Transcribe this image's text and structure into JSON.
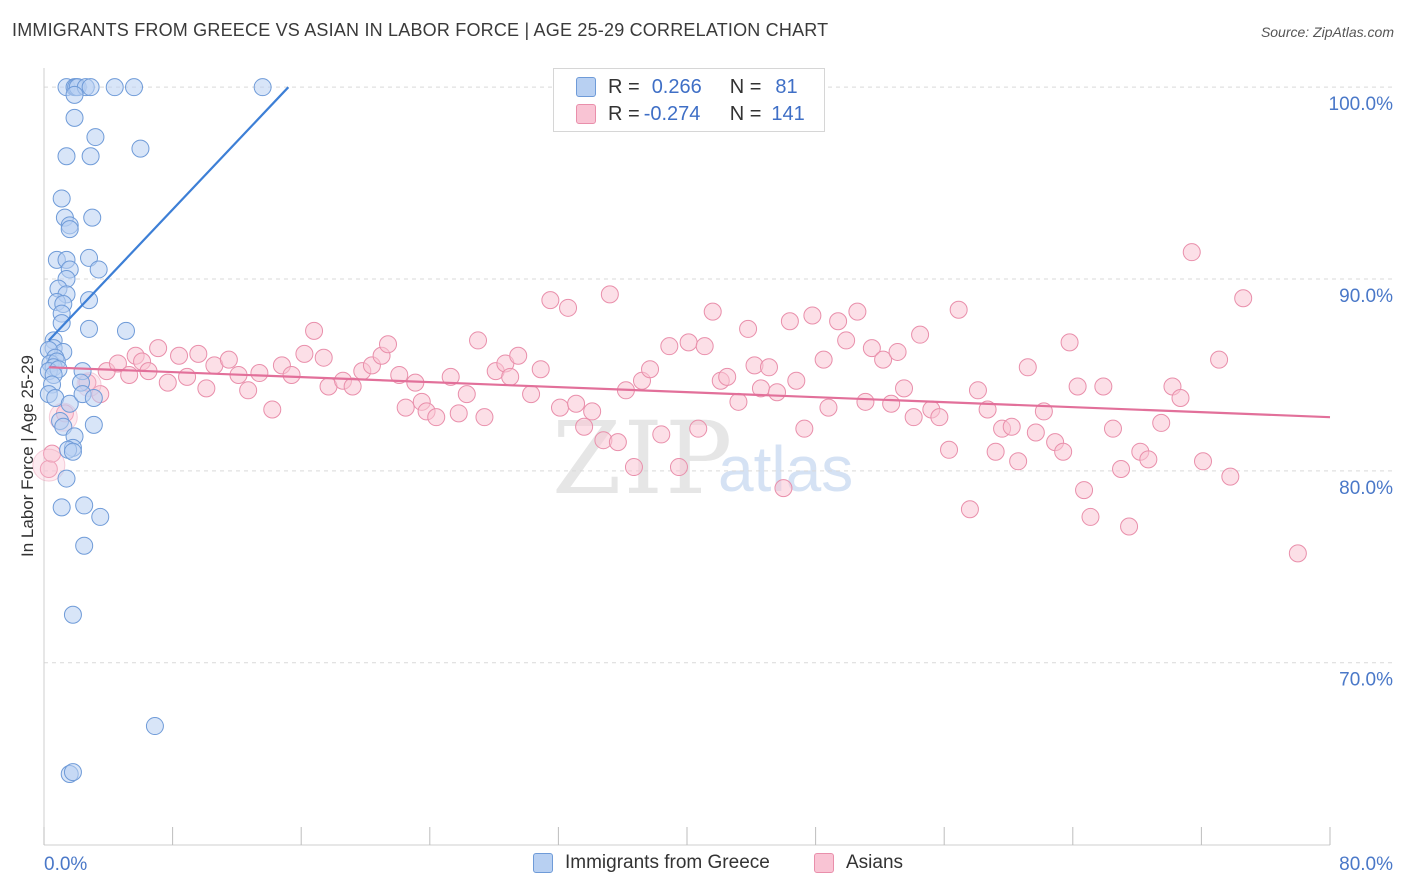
{
  "title": "IMMIGRANTS FROM GREECE VS ASIAN IN LABOR FORCE | AGE 25-29 CORRELATION CHART",
  "source": "Source: ZipAtlas.com",
  "watermark": {
    "zip": "ZIP",
    "atlas": "atlas"
  },
  "colors": {
    "blue_fill": "#b8d0f2",
    "blue_stroke": "#6f9bd8",
    "blue_line": "#3d7fd6",
    "pink_fill": "#f9c4d4",
    "pink_stroke": "#e98fab",
    "pink_line": "#e2709a",
    "axis_text": "#4a78c8",
    "grid": "#d9d9d9"
  },
  "legend": {
    "row1": {
      "r_label": "R =",
      "r_value": "0.266",
      "n_label": "N =",
      "n_value": "81"
    },
    "row2": {
      "r_label": "R =",
      "r_value": "-0.274",
      "n_label": "N =",
      "n_value": "141"
    }
  },
  "bottom_legend": {
    "series1": "Immigrants from Greece",
    "series2": "Asians"
  },
  "chart_data": {
    "type": "scatter",
    "title": "IMMIGRANTS FROM GREECE VS ASIAN IN LABOR FORCE | AGE 25-29 CORRELATION CHART",
    "xlabel": "",
    "ylabel": "In Labor Force | Age 25-29",
    "xlim": [
      0,
      80
    ],
    "ylim": [
      60.5,
      101
    ],
    "x_tick_labels": {
      "left": "0.0%",
      "right": "80.0%"
    },
    "y_ticks": [
      {
        "value": 100,
        "label": "100.0%"
      },
      {
        "value": 90,
        "label": "90.0%"
      },
      {
        "value": 80,
        "label": "80.0%"
      },
      {
        "value": 70,
        "label": "70.0%"
      }
    ],
    "series": [
      {
        "name": "Immigrants from Greece",
        "color": "blue",
        "trend": {
          "x1": 0.3,
          "y1": 86.8,
          "x2": 15.2,
          "y2": 100.0
        },
        "points": [
          [
            1.4,
            100
          ],
          [
            1.9,
            100
          ],
          [
            2.0,
            100
          ],
          [
            2.1,
            100
          ],
          [
            2.6,
            100
          ],
          [
            2.9,
            100
          ],
          [
            4.4,
            100
          ],
          [
            5.6,
            100
          ],
          [
            13.6,
            100
          ],
          [
            1.9,
            99.6
          ],
          [
            1.9,
            98.4
          ],
          [
            3.2,
            97.4
          ],
          [
            6.0,
            96.8
          ],
          [
            1.4,
            96.4
          ],
          [
            2.9,
            96.4
          ],
          [
            1.1,
            94.2
          ],
          [
            1.3,
            93.2
          ],
          [
            3.0,
            93.2
          ],
          [
            1.6,
            92.8
          ],
          [
            1.6,
            92.6
          ],
          [
            0.8,
            91.0
          ],
          [
            1.4,
            91.0
          ],
          [
            2.8,
            91.1
          ],
          [
            1.6,
            90.5
          ],
          [
            1.4,
            90.0
          ],
          [
            3.4,
            90.5
          ],
          [
            0.9,
            89.5
          ],
          [
            1.4,
            89.2
          ],
          [
            0.8,
            88.8
          ],
          [
            1.2,
            88.7
          ],
          [
            1.1,
            88.2
          ],
          [
            2.8,
            88.9
          ],
          [
            1.1,
            87.7
          ],
          [
            2.8,
            87.4
          ],
          [
            5.1,
            87.3
          ],
          [
            0.6,
            86.8
          ],
          [
            0.6,
            86.4
          ],
          [
            1.2,
            86.2
          ],
          [
            0.3,
            86.3
          ],
          [
            0.7,
            85.9
          ],
          [
            0.4,
            85.6
          ],
          [
            0.8,
            85.7
          ],
          [
            0.6,
            85.4
          ],
          [
            0.3,
            85.2
          ],
          [
            0.9,
            85.3
          ],
          [
            2.4,
            85.2
          ],
          [
            0.6,
            85.0
          ],
          [
            0.5,
            84.5
          ],
          [
            2.3,
            84.6
          ],
          [
            0.3,
            84.0
          ],
          [
            0.7,
            83.8
          ],
          [
            1.6,
            83.5
          ],
          [
            2.4,
            84.0
          ],
          [
            3.1,
            83.8
          ],
          [
            1.0,
            82.6
          ],
          [
            1.2,
            82.3
          ],
          [
            3.1,
            82.4
          ],
          [
            1.9,
            81.8
          ],
          [
            1.8,
            81.2
          ],
          [
            1.5,
            81.1
          ],
          [
            1.8,
            81.0
          ],
          [
            1.4,
            79.6
          ],
          [
            1.1,
            78.1
          ],
          [
            2.5,
            78.2
          ],
          [
            3.5,
            77.6
          ],
          [
            2.5,
            76.1
          ],
          [
            1.8,
            72.5
          ],
          [
            6.9,
            66.7
          ],
          [
            1.6,
            64.2
          ],
          [
            1.8,
            64.3
          ]
        ]
      },
      {
        "name": "Asians",
        "color": "pink",
        "trend": {
          "x1": 0.3,
          "y1": 85.4,
          "x2": 80.0,
          "y2": 82.8
        },
        "points": [
          [
            0.3,
            80.1
          ],
          [
            0.5,
            80.9
          ],
          [
            1.3,
            83.0
          ],
          [
            2.7,
            84.6
          ],
          [
            3.5,
            84.0
          ],
          [
            3.9,
            85.2
          ],
          [
            4.6,
            85.6
          ],
          [
            5.3,
            85.0
          ],
          [
            5.7,
            86.0
          ],
          [
            6.1,
            85.7
          ],
          [
            6.5,
            85.2
          ],
          [
            7.1,
            86.4
          ],
          [
            7.7,
            84.6
          ],
          [
            8.4,
            86.0
          ],
          [
            8.9,
            84.9
          ],
          [
            9.6,
            86.1
          ],
          [
            10.1,
            84.3
          ],
          [
            10.6,
            85.5
          ],
          [
            11.5,
            85.8
          ],
          [
            12.1,
            85.0
          ],
          [
            12.7,
            84.2
          ],
          [
            13.4,
            85.1
          ],
          [
            14.2,
            83.2
          ],
          [
            14.8,
            85.5
          ],
          [
            15.4,
            85.0
          ],
          [
            16.2,
            86.1
          ],
          [
            16.8,
            87.3
          ],
          [
            17.4,
            85.9
          ],
          [
            17.7,
            84.4
          ],
          [
            18.6,
            84.7
          ],
          [
            19.2,
            84.4
          ],
          [
            19.8,
            85.2
          ],
          [
            20.4,
            85.5
          ],
          [
            21.0,
            86.0
          ],
          [
            21.4,
            86.6
          ],
          [
            22.1,
            85.0
          ],
          [
            22.5,
            83.3
          ],
          [
            23.1,
            84.6
          ],
          [
            23.5,
            83.6
          ],
          [
            23.8,
            83.1
          ],
          [
            24.4,
            82.8
          ],
          [
            25.3,
            84.9
          ],
          [
            25.8,
            83.0
          ],
          [
            26.3,
            84.0
          ],
          [
            27.0,
            86.8
          ],
          [
            27.4,
            82.8
          ],
          [
            28.1,
            85.2
          ],
          [
            28.7,
            85.6
          ],
          [
            29.0,
            84.9
          ],
          [
            29.5,
            86.0
          ],
          [
            30.3,
            84.0
          ],
          [
            30.9,
            85.3
          ],
          [
            31.5,
            88.9
          ],
          [
            32.1,
            83.3
          ],
          [
            32.6,
            88.5
          ],
          [
            33.1,
            83.5
          ],
          [
            33.6,
            82.3
          ],
          [
            34.1,
            83.1
          ],
          [
            34.8,
            81.6
          ],
          [
            35.2,
            89.2
          ],
          [
            35.7,
            81.5
          ],
          [
            36.2,
            84.2
          ],
          [
            36.7,
            80.2
          ],
          [
            37.2,
            84.7
          ],
          [
            37.7,
            85.3
          ],
          [
            38.4,
            81.9
          ],
          [
            38.9,
            86.5
          ],
          [
            39.5,
            80.2
          ],
          [
            40.1,
            86.7
          ],
          [
            40.7,
            82.2
          ],
          [
            41.1,
            86.5
          ],
          [
            41.6,
            88.3
          ],
          [
            42.1,
            84.7
          ],
          [
            42.5,
            84.9
          ],
          [
            43.2,
            83.6
          ],
          [
            43.8,
            87.4
          ],
          [
            44.2,
            85.5
          ],
          [
            44.6,
            84.3
          ],
          [
            45.1,
            85.4
          ],
          [
            45.6,
            84.1
          ],
          [
            46.0,
            79.1
          ],
          [
            46.4,
            87.8
          ],
          [
            46.8,
            84.7
          ],
          [
            47.3,
            82.2
          ],
          [
            47.8,
            88.1
          ],
          [
            48.5,
            85.8
          ],
          [
            48.8,
            83.3
          ],
          [
            49.4,
            87.8
          ],
          [
            49.9,
            86.8
          ],
          [
            50.6,
            88.3
          ],
          [
            51.1,
            83.6
          ],
          [
            51.5,
            86.4
          ],
          [
            52.2,
            85.8
          ],
          [
            52.7,
            83.5
          ],
          [
            53.1,
            86.2
          ],
          [
            53.5,
            84.3
          ],
          [
            54.1,
            82.8
          ],
          [
            54.5,
            87.1
          ],
          [
            55.2,
            83.2
          ],
          [
            55.7,
            82.8
          ],
          [
            56.3,
            81.1
          ],
          [
            56.9,
            88.4
          ],
          [
            57.6,
            78.0
          ],
          [
            58.1,
            84.2
          ],
          [
            58.7,
            83.2
          ],
          [
            59.2,
            81.0
          ],
          [
            59.6,
            82.2
          ],
          [
            60.2,
            82.3
          ],
          [
            60.6,
            80.5
          ],
          [
            61.2,
            85.4
          ],
          [
            61.7,
            82.0
          ],
          [
            62.2,
            83.1
          ],
          [
            62.9,
            81.5
          ],
          [
            63.4,
            81.0
          ],
          [
            63.8,
            86.7
          ],
          [
            64.3,
            84.4
          ],
          [
            64.7,
            79.0
          ],
          [
            65.1,
            77.6
          ],
          [
            65.9,
            84.4
          ],
          [
            66.5,
            82.2
          ],
          [
            67.0,
            80.1
          ],
          [
            67.5,
            77.1
          ],
          [
            68.2,
            81.0
          ],
          [
            68.7,
            80.6
          ],
          [
            69.5,
            82.5
          ],
          [
            70.2,
            84.4
          ],
          [
            70.7,
            83.8
          ],
          [
            71.4,
            91.4
          ],
          [
            72.1,
            80.5
          ],
          [
            73.1,
            85.8
          ],
          [
            73.8,
            79.7
          ],
          [
            74.6,
            89.0
          ],
          [
            78.0,
            75.7
          ]
        ]
      }
    ]
  }
}
